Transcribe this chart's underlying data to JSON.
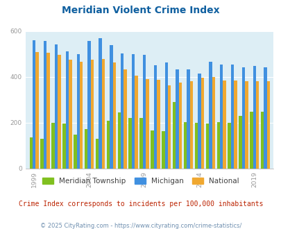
{
  "title": "Meridian Violent Crime Index",
  "title_color": "#1060a0",
  "subtitle": "Crime Index corresponds to incidents per 100,000 inhabitants",
  "subtitle_color": "#bb2200",
  "footer": "© 2025 CityRating.com - https://www.cityrating.com/crime-statistics/",
  "footer_color": "#7090b0",
  "years": [
    1999,
    2000,
    2001,
    2002,
    2003,
    2004,
    2005,
    2006,
    2007,
    2008,
    2009,
    2010,
    2011,
    2012,
    2013,
    2014,
    2015,
    2016,
    2017,
    2018,
    2019,
    2020
  ],
  "meridian": [
    135,
    128,
    198,
    195,
    148,
    172,
    130,
    208,
    243,
    220,
    220,
    165,
    162,
    290,
    202,
    200,
    197,
    202,
    200,
    228,
    247,
    247
  ],
  "michigan": [
    558,
    557,
    541,
    512,
    498,
    556,
    568,
    538,
    502,
    500,
    497,
    449,
    461,
    432,
    431,
    415,
    464,
    452,
    453,
    440,
    448,
    440
  ],
  "national": [
    507,
    506,
    496,
    473,
    465,
    473,
    476,
    463,
    431,
    405,
    391,
    386,
    363,
    374,
    380,
    396,
    399,
    383,
    383,
    381,
    379,
    381
  ],
  "meridian_color": "#80c020",
  "michigan_color": "#4090e0",
  "national_color": "#f0a830",
  "bg_color": "#ddeef5",
  "ylim": [
    0,
    600
  ],
  "yticks": [
    0,
    200,
    400,
    600
  ],
  "xtick_years": [
    1999,
    2004,
    2009,
    2014,
    2019
  ],
  "legend_labels": [
    "Meridian Township",
    "Michigan",
    "National"
  ],
  "bar_width": 0.28,
  "figsize": [
    4.06,
    3.3
  ],
  "dpi": 100
}
